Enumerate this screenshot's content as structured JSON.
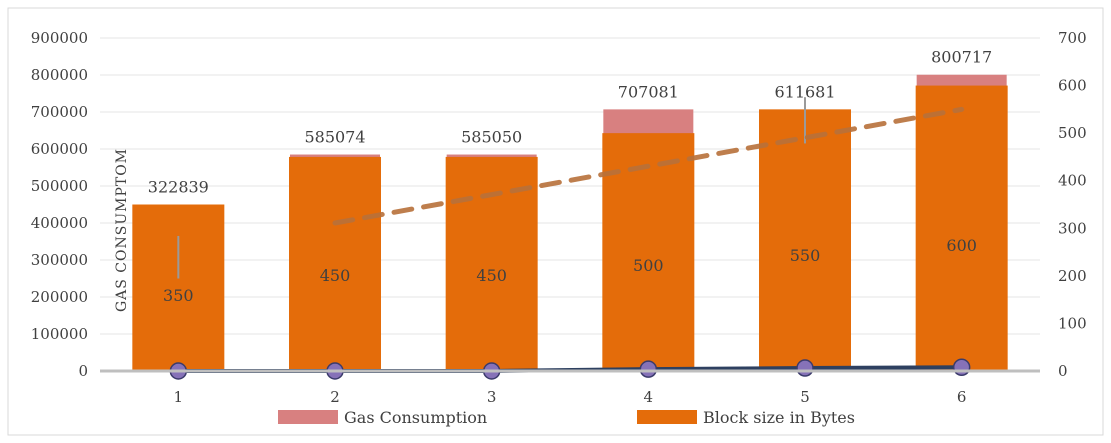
{
  "chart_data": {
    "type": "bar",
    "categories": [
      "1",
      "2",
      "3",
      "4",
      "5",
      "6"
    ],
    "ylabel": "GAS CONSUMPTOM",
    "ylim": [
      0,
      900000
    ],
    "ylim_right": [
      0,
      700
    ],
    "y_ticks": [
      "0",
      "100000",
      "200000",
      "300000",
      "400000",
      "500000",
      "600000",
      "700000",
      "800000",
      "900000"
    ],
    "y2_ticks": [
      "0",
      "100",
      "200",
      "300",
      "400",
      "500",
      "600",
      "700"
    ],
    "grid": true,
    "legend_position": "bottom",
    "series": [
      {
        "name": "Gas Consumption",
        "axis": "left",
        "color": "#d88080",
        "values": [
          322839,
          585074,
          585050,
          707081,
          611681,
          800717
        ],
        "labels": [
          "322839",
          "585074",
          "585050",
          "707081",
          "611681",
          "800717"
        ]
      },
      {
        "name": "Block size in Bytes",
        "axis": "right",
        "color": "#e46c0a",
        "values": [
          350,
          450,
          450,
          500,
          550,
          600
        ],
        "labels": [
          "350",
          "450",
          "450",
          "500",
          "550",
          "600"
        ]
      }
    ],
    "error_bars": [
      {
        "category": "1",
        "low": 250000,
        "high": 365000
      },
      {
        "category": "5",
        "low": 615000,
        "high": 740000
      }
    ],
    "trendline": {
      "style": "dashed",
      "color": "#b8713a",
      "from_category": "2",
      "to_category": "6",
      "values": [
        400000,
        707081
      ]
    },
    "baseline_line": {
      "color": "#2e4060",
      "marker_color": "#8672b8",
      "values": [
        0,
        0,
        0,
        5000,
        8000,
        10000
      ]
    }
  }
}
